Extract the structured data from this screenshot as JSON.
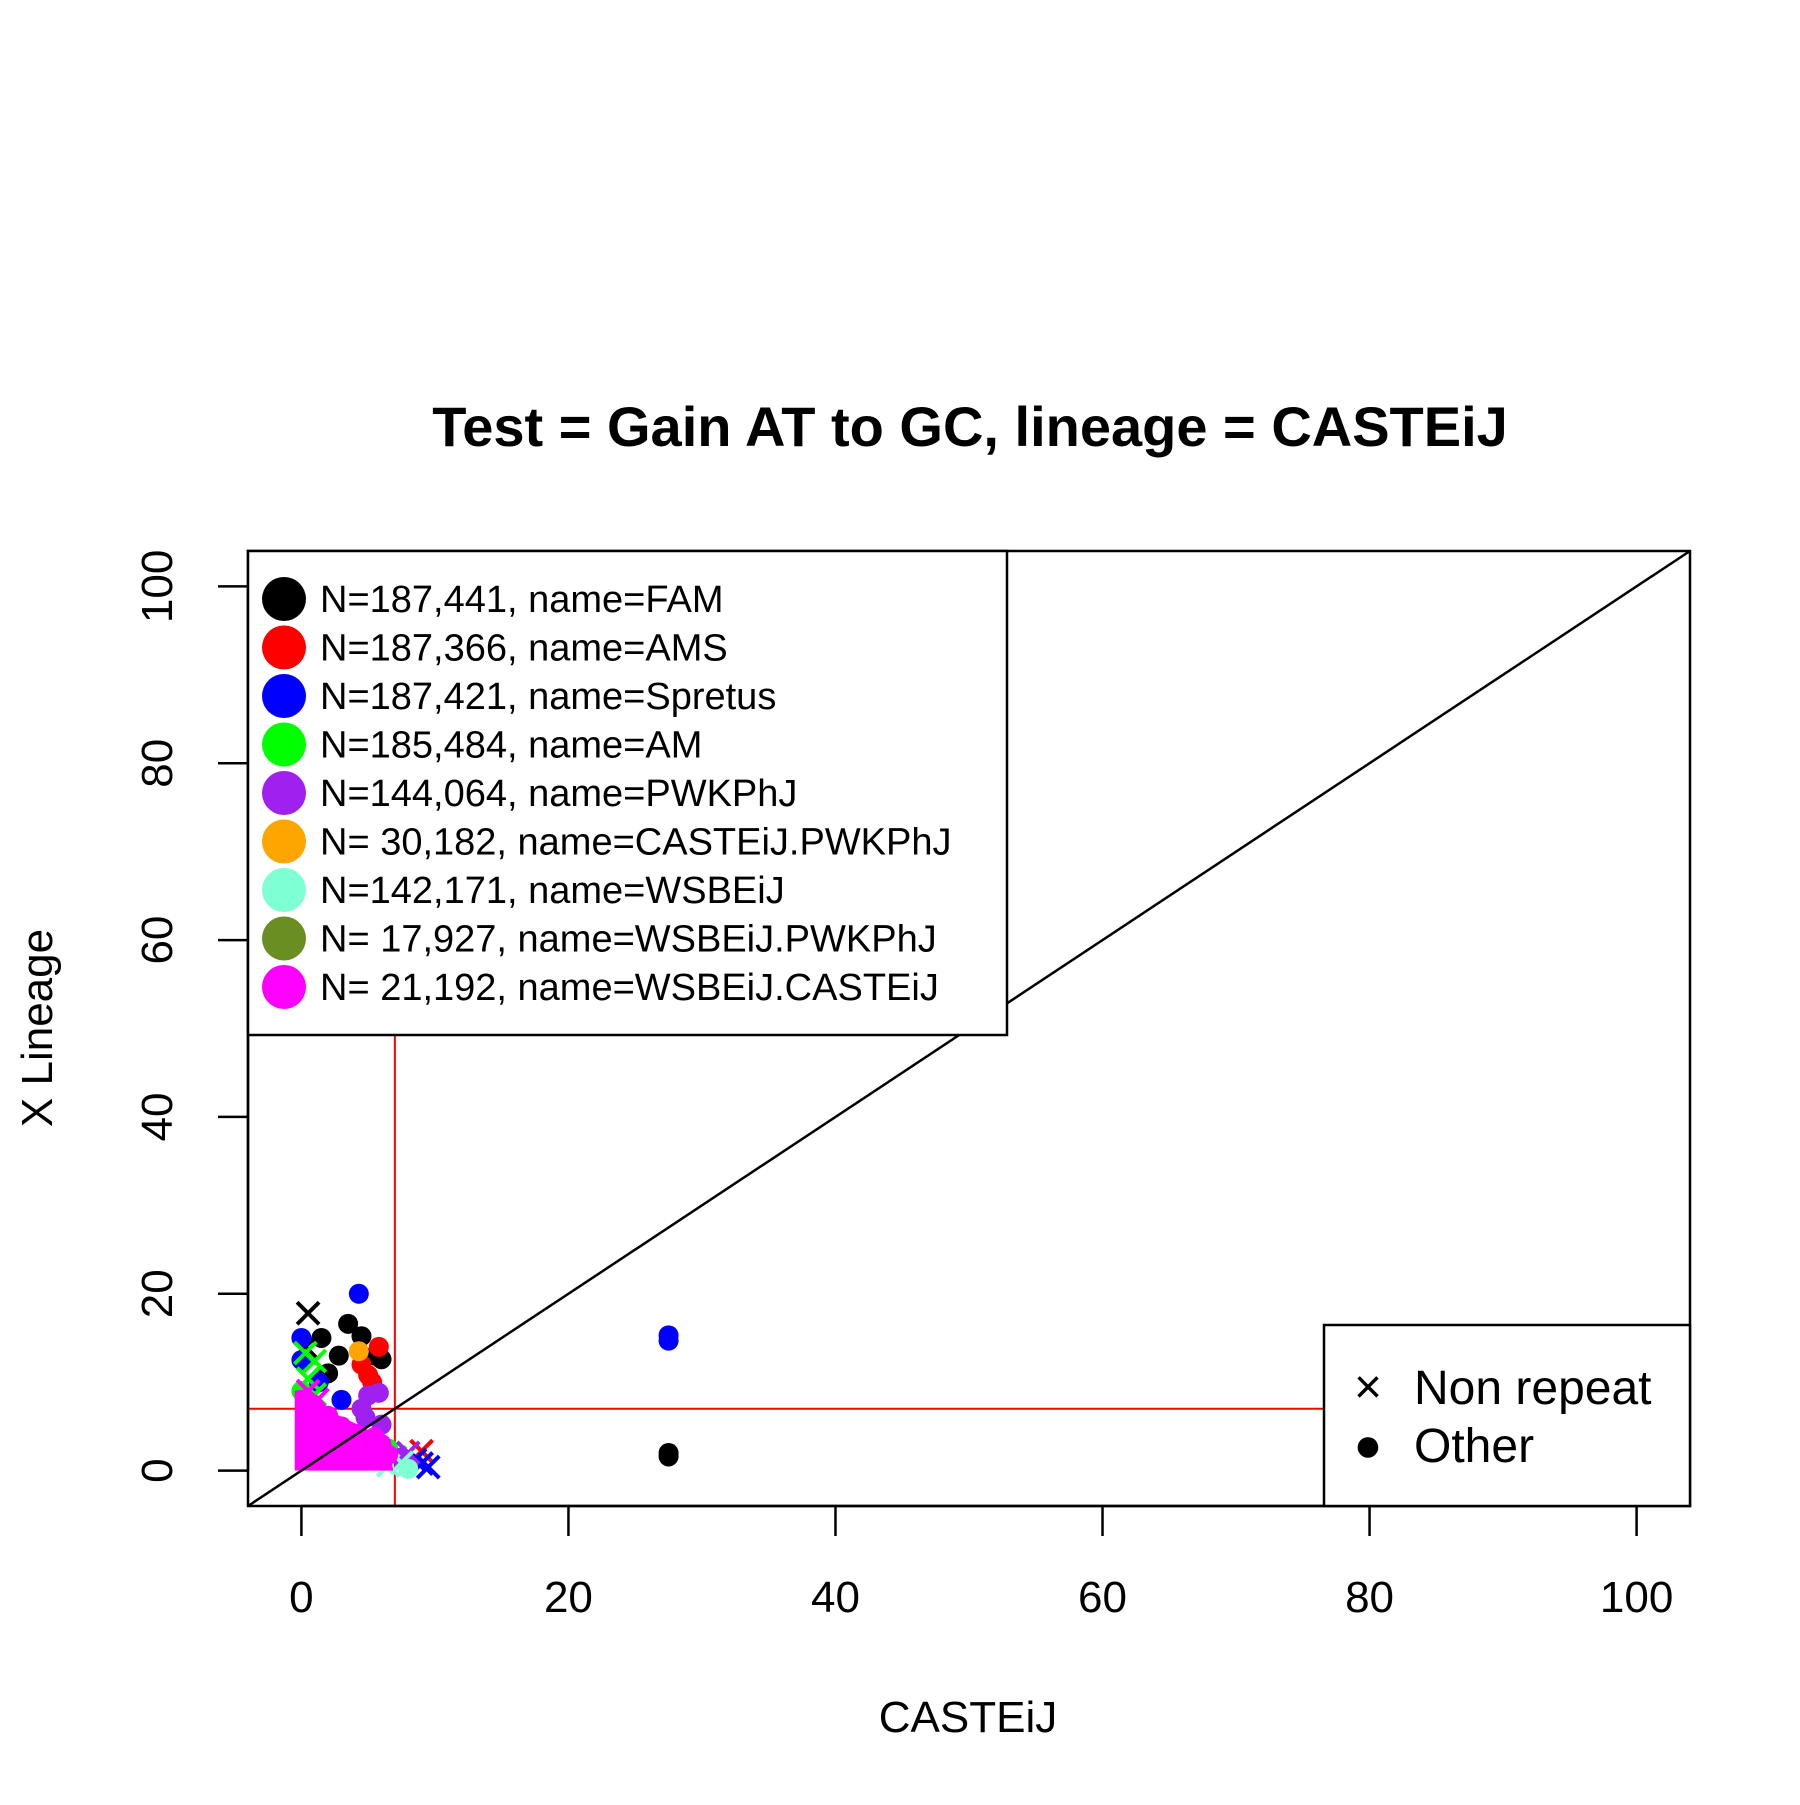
{
  "chart_data": {
    "type": "scatter",
    "title": "Test = Gain AT to GC, lineage = CASTEiJ",
    "xlabel": "CASTEiJ",
    "ylabel": "X Lineage",
    "xlim": [
      -4,
      104
    ],
    "ylim": [
      -4,
      104
    ],
    "x_ticks": [
      "0",
      "20",
      "40",
      "60",
      "80",
      "100"
    ],
    "y_ticks": [
      "0",
      "20",
      "40",
      "60",
      "80",
      "100"
    ],
    "x_tick_values": [
      0,
      20,
      40,
      60,
      80,
      100
    ],
    "y_tick_values": [
      0,
      20,
      40,
      60,
      80,
      100
    ],
    "reference_lines": {
      "diagonal": "y = x",
      "vline_x": 7,
      "hline_y": 7,
      "threshold_color": "#ff0000"
    },
    "legend_placement": "top-left",
    "marker_legend_placement": "bottom-right",
    "series": [
      {
        "label": "N=187,441, name=FAM",
        "color": "#000000",
        "points": [
          [
            0.3,
            14,
            "x"
          ],
          [
            0.5,
            17.8,
            "x"
          ],
          [
            1.5,
            15,
            "o"
          ],
          [
            2.8,
            13,
            "o"
          ],
          [
            3.5,
            16.6,
            "o"
          ],
          [
            4.5,
            15.2,
            "o"
          ],
          [
            5.5,
            13,
            "o"
          ],
          [
            6,
            12.6,
            "o"
          ],
          [
            2,
            11,
            "o"
          ],
          [
            27.5,
            2,
            "o"
          ],
          [
            27.5,
            1.6,
            "o"
          ]
        ]
      },
      {
        "label": "N=187,366, name=AMS",
        "color": "#ff0000",
        "points": [
          [
            5.8,
            14,
            "o"
          ],
          [
            4.5,
            12,
            "o"
          ],
          [
            5,
            10.8,
            "o"
          ],
          [
            5.3,
            10,
            "o"
          ],
          [
            9,
            2.2,
            "x"
          ],
          [
            8.5,
            1.2,
            "x"
          ],
          [
            1,
            4,
            "o"
          ]
        ]
      },
      {
        "label": "N=187,421, name=Spretus",
        "color": "#0000ff",
        "points": [
          [
            4.3,
            20,
            "o"
          ],
          [
            0,
            15,
            "o"
          ],
          [
            0,
            12.5,
            "o"
          ],
          [
            1.3,
            10,
            "o"
          ],
          [
            3,
            8,
            "o"
          ],
          [
            27.5,
            15.3,
            "o"
          ],
          [
            27.5,
            14.7,
            "o"
          ],
          [
            9,
            0.8,
            "x"
          ],
          [
            9.5,
            0.4,
            "x"
          ],
          [
            8.5,
            1.2,
            "x"
          ]
        ]
      },
      {
        "label": "N=185,484, name=AM",
        "color": "#00ff00",
        "points": [
          [
            0.3,
            13.3,
            "x"
          ],
          [
            1,
            12.4,
            "x"
          ],
          [
            0.5,
            10.4,
            "x"
          ],
          [
            0,
            9,
            "o"
          ],
          [
            1,
            8.6,
            "x"
          ],
          [
            6.5,
            2.5,
            "o"
          ],
          [
            7,
            1.5,
            "x"
          ]
        ]
      },
      {
        "label": "N=144,064, name=PWKPhJ",
        "color": "#a020f0",
        "points": [
          [
            4.5,
            7,
            "o"
          ],
          [
            5,
            8.5,
            "o"
          ],
          [
            5.8,
            8.8,
            "o"
          ],
          [
            6,
            5.2,
            "o"
          ],
          [
            4.8,
            6,
            "o"
          ],
          [
            7.5,
            1.5,
            "o"
          ],
          [
            8,
            2,
            "x"
          ]
        ]
      },
      {
        "label": "N= 30,182, name=CASTEiJ.PWKPhJ",
        "color": "#ffa500",
        "points": [
          [
            4.3,
            13.5,
            "o"
          ]
        ]
      },
      {
        "label": "N=142,171, name=WSBEiJ",
        "color": "#7fffd4",
        "points": [
          [
            6.5,
            0.6,
            "x"
          ],
          [
            7.5,
            0.9,
            "x"
          ],
          [
            8,
            0.2,
            "o"
          ],
          [
            6,
            1.6,
            "o"
          ],
          [
            2.5,
            2,
            "o"
          ],
          [
            5.5,
            2.8,
            "o"
          ]
        ]
      },
      {
        "label": "N= 17,927, name=WSBEiJ.PWKPhJ",
        "color": "#6b8e23",
        "points": [
          [
            3.5,
            3.2,
            "o"
          ],
          [
            5,
            2.2,
            "o"
          ]
        ]
      },
      {
        "label": "N= 21,192, name=WSBEiJ.CASTEiJ",
        "color": "#ff00ff",
        "points": [
          [
            0.5,
            9,
            "x"
          ],
          [
            1.2,
            8,
            "x"
          ],
          [
            2,
            6.2,
            "o"
          ],
          [
            3,
            5,
            "o"
          ],
          [
            4,
            4.2,
            "o"
          ],
          [
            5.5,
            3.8,
            "o"
          ],
          [
            6,
            3,
            "o"
          ],
          [
            6.5,
            1.8,
            "o"
          ]
        ],
        "cluster": {
          "x": [
            -0.5,
            6.5
          ],
          "y": [
            0,
            9
          ]
        }
      }
    ],
    "marker_legend": [
      {
        "symbol": "×",
        "label": "Non repeat"
      },
      {
        "symbol": "●",
        "label": "Other"
      }
    ]
  }
}
